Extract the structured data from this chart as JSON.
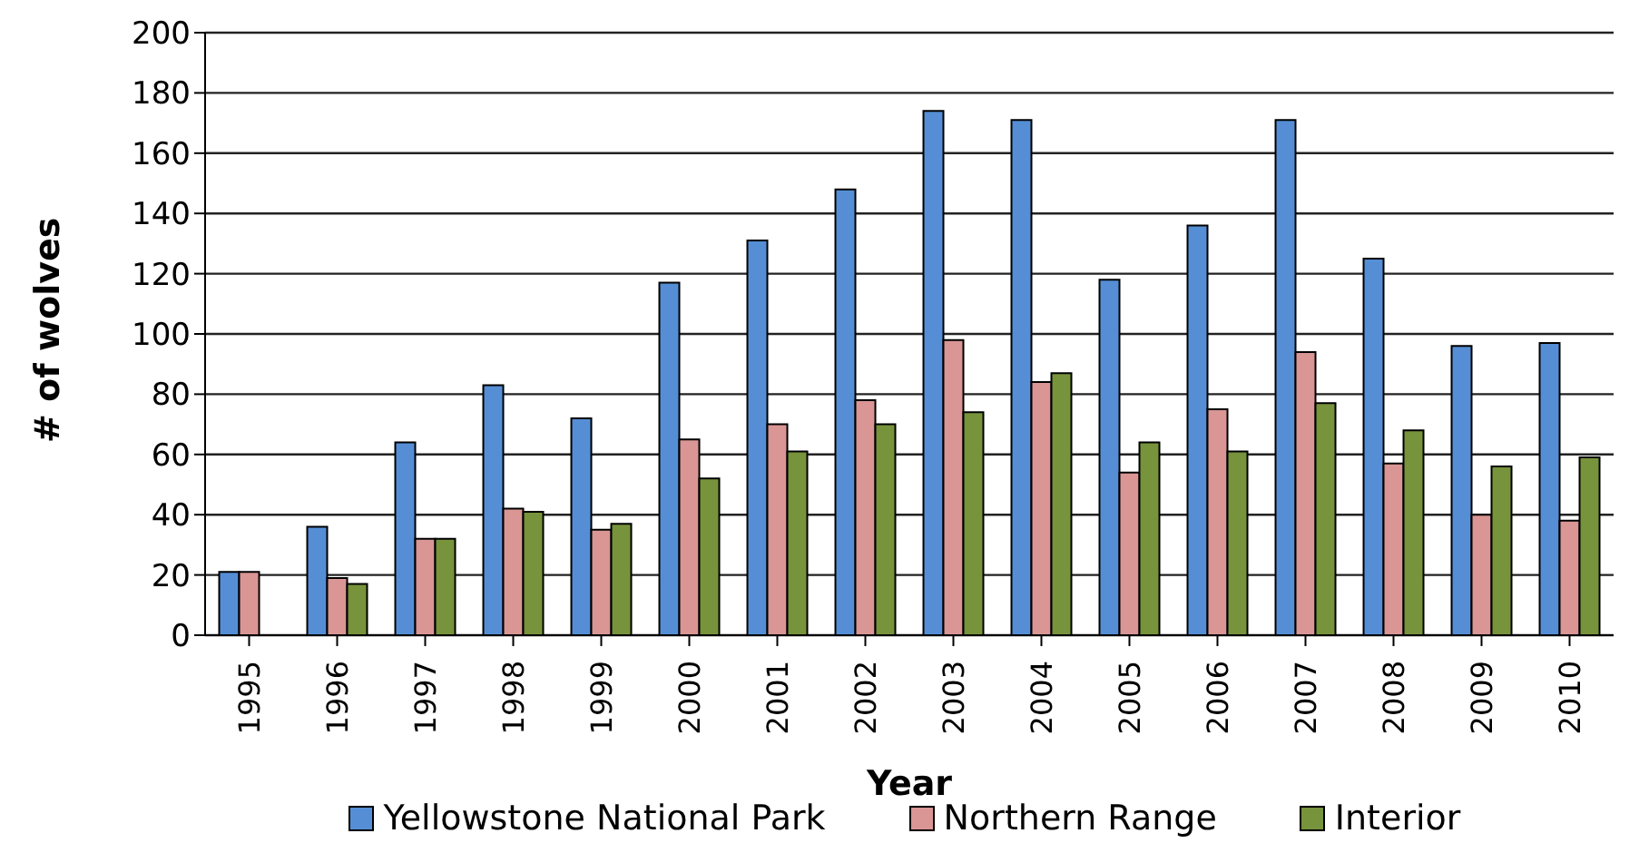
{
  "chart_data": {
    "type": "bar",
    "xlabel": "Year",
    "ylabel": "# of wolves",
    "categories": [
      "1995",
      "1996",
      "1997",
      "1998",
      "1999",
      "2000",
      "2001",
      "2002",
      "2003",
      "2004",
      "2005",
      "2006",
      "2007",
      "2008",
      "2009",
      "2010"
    ],
    "series": [
      {
        "name": "Yellowstone National Park",
        "color": "#558ed5",
        "values": [
          21,
          36,
          64,
          83,
          72,
          117,
          131,
          148,
          174,
          171,
          118,
          136,
          171,
          125,
          96,
          97
        ]
      },
      {
        "name": "Northern Range",
        "color": "#d99694",
        "values": [
          21,
          19,
          32,
          42,
          35,
          65,
          70,
          78,
          98,
          84,
          54,
          75,
          94,
          57,
          40,
          38
        ]
      },
      {
        "name": "Interior",
        "color": "#77933c",
        "values": [
          null,
          17,
          32,
          41,
          37,
          52,
          61,
          70,
          74,
          87,
          64,
          61,
          77,
          68,
          56,
          59
        ]
      }
    ],
    "ylim": [
      0,
      200
    ],
    "yticks": [
      0,
      20,
      40,
      60,
      80,
      100,
      120,
      140,
      160,
      180,
      200
    ],
    "grid": "y",
    "legend": "bottom"
  }
}
